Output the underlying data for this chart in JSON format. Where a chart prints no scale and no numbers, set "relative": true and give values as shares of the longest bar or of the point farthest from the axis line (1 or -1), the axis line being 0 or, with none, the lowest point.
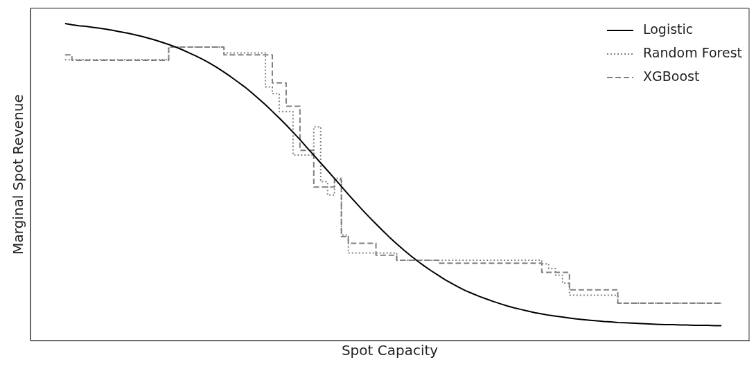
{
  "chart_data": {
    "type": "line",
    "xlabel": "Spot Capacity",
    "ylabel": "Marginal Spot Revenue",
    "relative": true,
    "grid": false,
    "legend": "top right",
    "marker": "none",
    "categories": [
      null,
      null,
      null,
      null,
      null,
      null,
      null,
      null,
      null,
      null,
      null,
      null,
      null,
      null,
      null,
      null,
      null,
      null,
      null,
      null,
      null,
      null,
      null,
      null,
      null,
      null,
      null,
      null,
      null,
      null,
      null,
      null,
      null,
      null,
      null,
      null,
      null,
      null,
      null,
      null,
      null,
      null,
      null,
      null,
      null,
      null,
      null,
      null,
      null,
      null,
      null,
      null,
      null,
      null,
      null,
      null,
      null,
      null,
      null,
      null,
      null,
      null,
      null,
      null,
      null,
      null,
      null,
      null,
      null,
      null,
      null,
      null,
      null,
      null,
      null,
      null,
      null,
      null,
      null,
      null,
      null,
      null,
      null,
      null,
      null,
      null,
      null,
      null,
      null,
      null,
      null,
      null,
      null,
      null,
      null,
      null,
      null,
      null,
      null,
      null,
      null,
      null,
      null,
      null,
      null
    ],
    "series": [
      {
        "name": "Logistic",
        "type": "line",
        "color": "#000000",
        "line_style": "solid",
        "values": [
          null,
          null,
          null,
          null,
          null,
          1,
          0.996,
          0.993,
          0.991,
          0.988,
          0.985,
          0.982,
          0.978,
          0.974,
          0.97,
          0.965,
          0.96,
          0.954,
          0.948,
          0.941,
          0.934,
          0.926,
          0.917,
          0.907,
          0.897,
          0.886,
          0.874,
          0.861,
          0.847,
          0.832,
          0.816,
          0.8,
          0.782,
          0.763,
          0.744,
          0.723,
          0.702,
          0.68,
          0.657,
          0.634,
          0.609,
          0.585,
          0.56,
          0.536,
          0.511,
          0.486,
          0.461,
          0.437,
          0.413,
          0.39,
          0.368,
          0.346,
          0.325,
          0.305,
          0.286,
          0.268,
          0.251,
          0.235,
          0.22,
          0.206,
          0.192,
          0.18,
          0.168,
          0.157,
          0.148,
          0.139,
          0.131,
          0.123,
          0.116,
          0.109,
          0.103,
          0.098,
          0.093,
          0.088,
          0.084,
          0.08,
          0.077,
          0.074,
          0.071,
          0.068,
          0.066,
          0.064,
          0.062,
          0.06,
          0.059,
          0.057,
          0.056,
          0.055,
          0.054,
          0.053,
          0.052,
          0.051,
          0.05,
          0.05,
          0.049,
          0.049,
          0.048,
          0.048,
          0.048,
          0.047,
          0.047,
          null,
          null,
          null,
          null
        ]
      },
      {
        "name": "Random Forest",
        "type": "step",
        "color": "#808080",
        "line_style": "dotted",
        "values": [
          null,
          null,
          null,
          null,
          null,
          0.886,
          0.886,
          0.886,
          0.886,
          0.886,
          0.886,
          0.886,
          0.886,
          0.886,
          0.886,
          0.886,
          0.886,
          0.886,
          0.886,
          0.886,
          0.926,
          0.926,
          0.926,
          0.926,
          0.926,
          0.926,
          0.926,
          0.926,
          0.907,
          0.907,
          0.907,
          0.907,
          0.907,
          0.907,
          0.8,
          0.779,
          0.722,
          0.722,
          0.585,
          0.585,
          0.585,
          0.674,
          0.501,
          0.459,
          0.512,
          0.333,
          0.276,
          0.276,
          0.276,
          0.276,
          0.276,
          0.276,
          0.276,
          0.253,
          0.253,
          0.253,
          0.253,
          0.253,
          0.253,
          0.253,
          0.253,
          0.253,
          0.253,
          0.253,
          0.253,
          0.253,
          0.253,
          0.253,
          0.253,
          0.253,
          0.253,
          0.253,
          0.253,
          0.253,
          0.242,
          0.227,
          0.206,
          0.181,
          0.143,
          0.143,
          0.143,
          0.143,
          0.143,
          0.143,
          0.143,
          0.118,
          0.118,
          0.118,
          0.118,
          0.118,
          0.118,
          0.118,
          0.118,
          0.118,
          0.118,
          0.118,
          0.118,
          0.118,
          0.118,
          0.118,
          0.118,
          null,
          null,
          null,
          null
        ]
      },
      {
        "name": "XGBoost",
        "type": "step",
        "color": "#808080",
        "line_style": "dashed",
        "values": [
          null,
          null,
          null,
          null,
          null,
          0.901,
          0.884,
          0.884,
          0.884,
          0.884,
          0.884,
          0.884,
          0.884,
          0.884,
          0.884,
          0.884,
          0.884,
          0.884,
          0.884,
          0.884,
          0.926,
          0.926,
          0.926,
          0.926,
          0.926,
          0.926,
          0.926,
          0.926,
          0.901,
          0.901,
          0.901,
          0.901,
          0.901,
          0.901,
          0.901,
          0.813,
          0.813,
          0.739,
          0.739,
          0.6,
          0.6,
          0.484,
          0.484,
          0.484,
          0.507,
          0.328,
          0.307,
          0.307,
          0.307,
          0.307,
          0.269,
          0.269,
          0.269,
          0.253,
          0.253,
          0.253,
          0.253,
          0.253,
          0.253,
          0.244,
          0.244,
          0.244,
          0.244,
          0.244,
          0.244,
          0.244,
          0.244,
          0.244,
          0.244,
          0.244,
          0.244,
          0.244,
          0.244,
          0.244,
          0.215,
          0.215,
          0.215,
          0.215,
          0.16,
          0.16,
          0.16,
          0.16,
          0.16,
          0.16,
          0.16,
          0.118,
          0.118,
          0.118,
          0.118,
          0.118,
          0.118,
          0.118,
          0.118,
          0.118,
          0.118,
          0.118,
          0.118,
          0.118,
          0.118,
          0.118,
          0.118,
          null,
          null,
          null,
          null
        ]
      }
    ]
  }
}
